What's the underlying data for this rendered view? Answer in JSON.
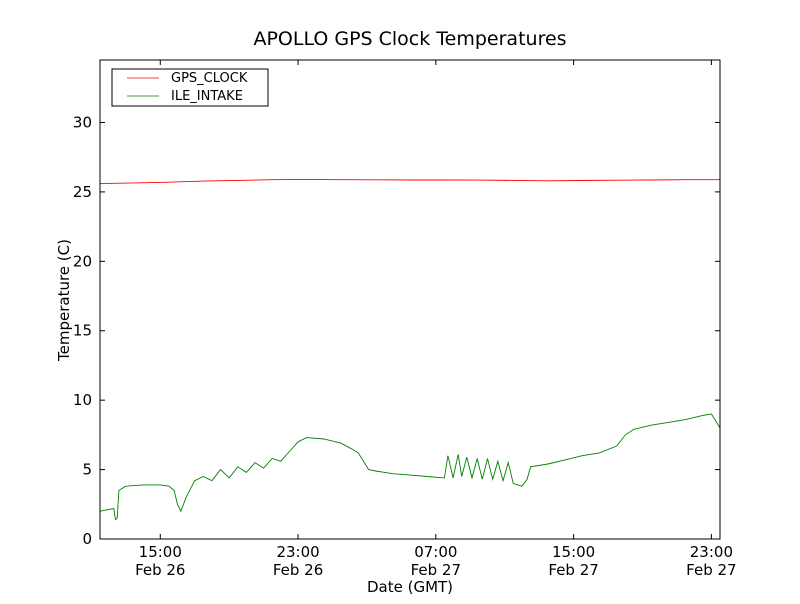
{
  "chart_data": {
    "type": "line",
    "title": "APOLLO GPS Clock Temperatures",
    "xlabel": "Date (GMT)",
    "ylabel": "Temperature (C)",
    "x_units": "hours since Feb 26 11:30 GMT",
    "xlim": [
      0,
      36
    ],
    "ylim": [
      0,
      34.5
    ],
    "yticks": [
      0,
      5,
      10,
      15,
      20,
      25,
      30
    ],
    "xticks": [
      {
        "x": 3.5,
        "time": "15:00",
        "date": "Feb 26"
      },
      {
        "x": 11.5,
        "time": "23:00",
        "date": "Feb 26"
      },
      {
        "x": 19.5,
        "time": "07:00",
        "date": "Feb 27"
      },
      {
        "x": 27.5,
        "time": "15:00",
        "date": "Feb 27"
      },
      {
        "x": 35.5,
        "time": "23:00",
        "date": "Feb 27"
      }
    ],
    "grid": false,
    "legend_position": "top-left",
    "series": [
      {
        "name": "GPS_CLOCK",
        "color": "#ff0000",
        "x": [
          0,
          2,
          4,
          6,
          8,
          10,
          12,
          14,
          16,
          18,
          20,
          22,
          24,
          26,
          28,
          30,
          32,
          34,
          36
        ],
        "y": [
          25.6,
          25.65,
          25.7,
          25.78,
          25.83,
          25.88,
          25.9,
          25.88,
          25.87,
          25.86,
          25.86,
          25.85,
          25.83,
          25.8,
          25.82,
          25.84,
          25.86,
          25.88,
          25.88
        ]
      },
      {
        "name": "ILE_INTAKE",
        "color": "#008000",
        "x": [
          0,
          0.8,
          0.9,
          1.0,
          1.1,
          1.5,
          2.5,
          3.5,
          4.0,
          4.3,
          4.5,
          4.7,
          5.0,
          5.5,
          6.0,
          6.5,
          7.0,
          7.5,
          8.0,
          8.5,
          9.0,
          9.5,
          10.0,
          10.5,
          11.0,
          11.5,
          12.0,
          13.0,
          14.0,
          14.6,
          15.0,
          15.3,
          15.6,
          16.0,
          17.0,
          18.0,
          19.0,
          20.0,
          20.2,
          20.5,
          20.8,
          21.0,
          21.3,
          21.6,
          21.9,
          22.2,
          22.5,
          22.8,
          23.1,
          23.4,
          23.7,
          24.0,
          24.5,
          24.8,
          25.0,
          26.0,
          27.0,
          28.0,
          29.0,
          30.0,
          30.5,
          31.0,
          32.0,
          33.0,
          34.0,
          35.0,
          35.5,
          36.0
        ],
        "y": [
          2.0,
          2.2,
          1.4,
          1.5,
          3.5,
          3.8,
          3.9,
          3.9,
          3.8,
          3.5,
          2.5,
          2.0,
          3.0,
          4.2,
          4.5,
          4.2,
          5.0,
          4.4,
          5.2,
          4.8,
          5.5,
          5.1,
          5.8,
          5.6,
          6.3,
          7.0,
          7.3,
          7.2,
          6.9,
          6.5,
          6.2,
          5.6,
          5.0,
          4.9,
          4.7,
          4.6,
          4.5,
          4.4,
          6.0,
          4.4,
          6.1,
          4.5,
          5.9,
          4.4,
          5.8,
          4.3,
          5.8,
          4.3,
          5.6,
          4.2,
          5.5,
          4.0,
          3.8,
          4.3,
          5.2,
          5.4,
          5.7,
          6.0,
          6.2,
          6.7,
          7.5,
          7.9,
          8.2,
          8.4,
          8.6,
          8.9,
          9.0,
          8.0
        ]
      }
    ]
  }
}
